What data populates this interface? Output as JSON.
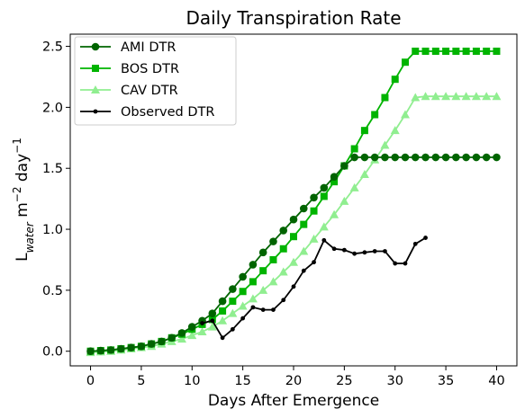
{
  "chart_data": {
    "type": "line",
    "title": "Daily Transpiration Rate",
    "xlabel": "Days After Emergence",
    "ylabel_main": "L",
    "ylabel_sub": "water",
    "ylabel_unit1": " m",
    "ylabel_sup1": "−2",
    "ylabel_unit2": " day",
    "ylabel_sup2": "−1",
    "xlim": [
      -2,
      42
    ],
    "ylim": [
      -0.12,
      2.6
    ],
    "xticks": [
      0,
      5,
      10,
      15,
      20,
      25,
      30,
      35,
      40
    ],
    "yticks": [
      0.0,
      0.5,
      1.0,
      1.5,
      2.0,
      2.5
    ],
    "ytick_labels": [
      "0.0",
      "0.5",
      "1.0",
      "1.5",
      "2.0",
      "2.5"
    ],
    "legend_position": "top-left",
    "series": [
      {
        "name": "AMI DTR",
        "color": "#006400",
        "marker": "circle",
        "x": [
          0,
          1,
          2,
          3,
          4,
          5,
          6,
          7,
          8,
          9,
          10,
          11,
          12,
          13,
          14,
          15,
          16,
          17,
          18,
          19,
          20,
          21,
          22,
          23,
          24,
          25,
          26,
          27,
          28,
          29,
          30,
          31,
          32,
          33,
          34,
          35,
          36,
          37,
          38,
          39,
          40
        ],
        "y": [
          0.0,
          0.005,
          0.01,
          0.02,
          0.03,
          0.04,
          0.06,
          0.08,
          0.11,
          0.15,
          0.2,
          0.25,
          0.31,
          0.41,
          0.51,
          0.61,
          0.71,
          0.81,
          0.9,
          0.99,
          1.08,
          1.17,
          1.26,
          1.34,
          1.43,
          1.52,
          1.59,
          1.59,
          1.59,
          1.59,
          1.59,
          1.59,
          1.59,
          1.59,
          1.59,
          1.59,
          1.59,
          1.59,
          1.59,
          1.59,
          1.59
        ]
      },
      {
        "name": "BOS DTR",
        "color": "#00b400",
        "marker": "square",
        "x": [
          0,
          1,
          2,
          3,
          4,
          5,
          6,
          7,
          8,
          9,
          10,
          11,
          12,
          13,
          14,
          15,
          16,
          17,
          18,
          19,
          20,
          21,
          22,
          23,
          24,
          25,
          26,
          27,
          28,
          29,
          30,
          31,
          32,
          33,
          34,
          35,
          36,
          37,
          38,
          39,
          40
        ],
        "y": [
          0.0,
          0.005,
          0.01,
          0.02,
          0.03,
          0.04,
          0.06,
          0.08,
          0.11,
          0.14,
          0.18,
          0.22,
          0.26,
          0.33,
          0.41,
          0.49,
          0.57,
          0.66,
          0.75,
          0.84,
          0.94,
          1.04,
          1.15,
          1.27,
          1.39,
          1.52,
          1.66,
          1.81,
          1.94,
          2.08,
          2.23,
          2.37,
          2.46,
          2.46,
          2.46,
          2.46,
          2.46,
          2.46,
          2.46,
          2.46,
          2.46
        ]
      },
      {
        "name": "CAV DTR",
        "color": "#90ee90",
        "marker": "triangle",
        "x": [
          0,
          1,
          2,
          3,
          4,
          5,
          6,
          7,
          8,
          9,
          10,
          11,
          12,
          13,
          14,
          15,
          16,
          17,
          18,
          19,
          20,
          21,
          22,
          23,
          24,
          25,
          26,
          27,
          28,
          29,
          30,
          31,
          32,
          33,
          34,
          35,
          36,
          37,
          38,
          39,
          40
        ],
        "y": [
          -0.01,
          -0.005,
          0.0,
          0.01,
          0.02,
          0.03,
          0.04,
          0.06,
          0.08,
          0.1,
          0.13,
          0.16,
          0.2,
          0.25,
          0.31,
          0.37,
          0.43,
          0.5,
          0.57,
          0.65,
          0.73,
          0.82,
          0.92,
          1.02,
          1.12,
          1.23,
          1.34,
          1.45,
          1.57,
          1.69,
          1.81,
          1.94,
          2.08,
          2.09,
          2.09,
          2.09,
          2.09,
          2.09,
          2.09,
          2.09,
          2.09
        ]
      },
      {
        "name": "Observed DTR",
        "color": "#000000",
        "marker": "dot",
        "x": [
          11,
          12,
          13,
          14,
          15,
          16,
          17,
          18,
          19,
          20,
          21,
          22,
          23,
          24,
          25,
          26,
          27,
          28,
          29,
          30,
          31,
          32,
          33
        ],
        "y": [
          0.23,
          0.25,
          0.11,
          0.18,
          0.27,
          0.36,
          0.34,
          0.34,
          0.42,
          0.53,
          0.66,
          0.73,
          0.91,
          0.84,
          0.83,
          0.8,
          0.81,
          0.82,
          0.82,
          0.72,
          0.72,
          0.88,
          0.93
        ]
      }
    ]
  }
}
